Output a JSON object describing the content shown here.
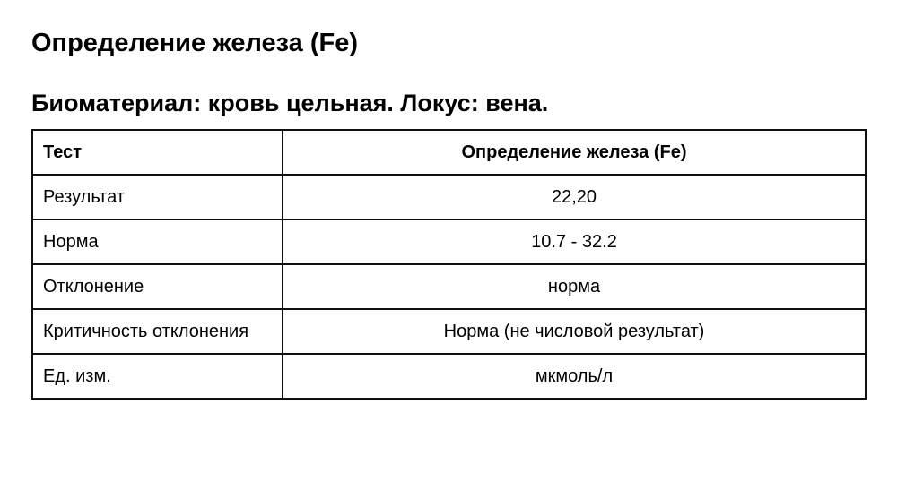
{
  "title": "Определение железа (Fe)",
  "subtitle": "Биоматериал: кровь цельная. Локус: вена.",
  "table": {
    "header": {
      "key": "Тест",
      "value": "Определение железа (Fe)"
    },
    "rows": [
      {
        "key": "Результат",
        "value": "22,20"
      },
      {
        "key": "Норма",
        "value": "10.7 - 32.2"
      },
      {
        "key": "Отклонение",
        "value": "норма"
      },
      {
        "key": "Критичность отклонения",
        "value": "Норма (не числовой результат)"
      },
      {
        "key": "Ед. изм.",
        "value": "мкмоль/л"
      }
    ]
  }
}
